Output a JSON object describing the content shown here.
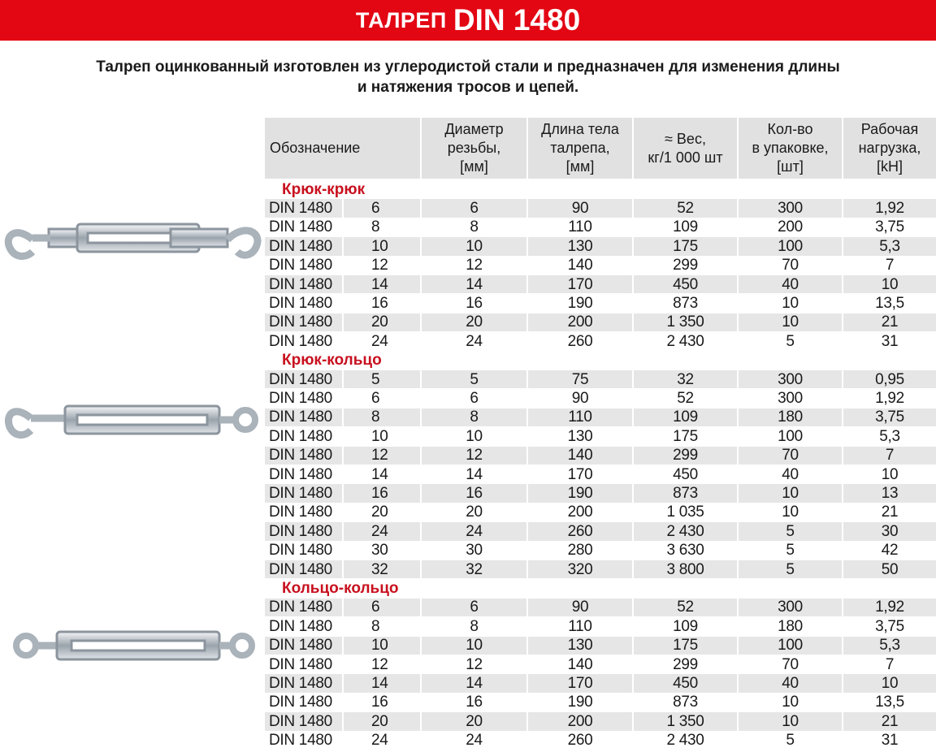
{
  "header": {
    "title_prefix": "ТАЛРЕП",
    "title_main": "DIN 1480"
  },
  "description": [
    "Талреп оцинкованный изготовлен из углеродистой стали и  предназначен  для изменения длины",
    "и натяжения тросов и цепей."
  ],
  "table": {
    "columns": [
      [
        "Обозначение"
      ],
      [
        "Диаметр",
        "резьбы,",
        "[мм]"
      ],
      [
        "Длина тела",
        "талрепа,",
        "[мм]"
      ],
      [
        "≈ Вес,",
        "кг/1 000 шт"
      ],
      [
        "Кол-во",
        "в упаковке,",
        "[шт]"
      ],
      [
        "Рабочая",
        "нагрузка,",
        "[kH]"
      ]
    ],
    "sections": [
      {
        "title": "Крюк-крюк",
        "rows": [
          [
            "DIN 1480",
            "6",
            "6",
            "90",
            "52",
            "300",
            "1,92"
          ],
          [
            "DIN 1480",
            "8",
            "8",
            "110",
            "109",
            "200",
            "3,75"
          ],
          [
            "DIN 1480",
            "10",
            "10",
            "130",
            "175",
            "100",
            "5,3"
          ],
          [
            "DIN 1480",
            "12",
            "12",
            "140",
            "299",
            "70",
            "7"
          ],
          [
            "DIN 1480",
            "14",
            "14",
            "170",
            "450",
            "40",
            "10"
          ],
          [
            "DIN 1480",
            "16",
            "16",
            "190",
            "873",
            "10",
            "13,5"
          ],
          [
            "DIN 1480",
            "20",
            "20",
            "200",
            "1 350",
            "10",
            "21"
          ],
          [
            "DIN 1480",
            "24",
            "24",
            "260",
            "2 430",
            "5",
            "31"
          ]
        ]
      },
      {
        "title": "Крюк-кольцо",
        "rows": [
          [
            "DIN 1480",
            "5",
            "5",
            "75",
            "32",
            "300",
            "0,95"
          ],
          [
            "DIN 1480",
            "6",
            "6",
            "90",
            "52",
            "300",
            "1,92"
          ],
          [
            "DIN 1480",
            "8",
            "8",
            "110",
            "109",
            "180",
            "3,75"
          ],
          [
            "DIN 1480",
            "10",
            "10",
            "130",
            "175",
            "100",
            "5,3"
          ],
          [
            "DIN 1480",
            "12",
            "12",
            "140",
            "299",
            "70",
            "7"
          ],
          [
            "DIN 1480",
            "14",
            "14",
            "170",
            "450",
            "40",
            "10"
          ],
          [
            "DIN 1480",
            "16",
            "16",
            "190",
            "873",
            "10",
            "13"
          ],
          [
            "DIN 1480",
            "20",
            "20",
            "200",
            "1 035",
            "10",
            "21"
          ],
          [
            "DIN 1480",
            "24",
            "24",
            "260",
            "2 430",
            "5",
            "30"
          ],
          [
            "DIN 1480",
            "30",
            "30",
            "280",
            "3 630",
            "5",
            "42"
          ],
          [
            "DIN 1480",
            "32",
            "32",
            "320",
            "3 800",
            "5",
            "50"
          ]
        ]
      },
      {
        "title": "Кольцо-кольцо",
        "rows": [
          [
            "DIN 1480",
            "6",
            "6",
            "90",
            "52",
            "300",
            "1,92"
          ],
          [
            "DIN 1480",
            "8",
            "8",
            "110",
            "109",
            "180",
            "3,75"
          ],
          [
            "DIN 1480",
            "10",
            "10",
            "130",
            "175",
            "100",
            "5,3"
          ],
          [
            "DIN 1480",
            "12",
            "12",
            "140",
            "299",
            "70",
            "7"
          ],
          [
            "DIN 1480",
            "14",
            "14",
            "170",
            "450",
            "40",
            "10"
          ],
          [
            "DIN 1480",
            "16",
            "16",
            "190",
            "873",
            "10",
            "13,5"
          ],
          [
            "DIN 1480",
            "20",
            "20",
            "200",
            "1 350",
            "10",
            "21"
          ],
          [
            "DIN 1480",
            "24",
            "24",
            "260",
            "2 430",
            "5",
            "31"
          ]
        ]
      }
    ]
  }
}
